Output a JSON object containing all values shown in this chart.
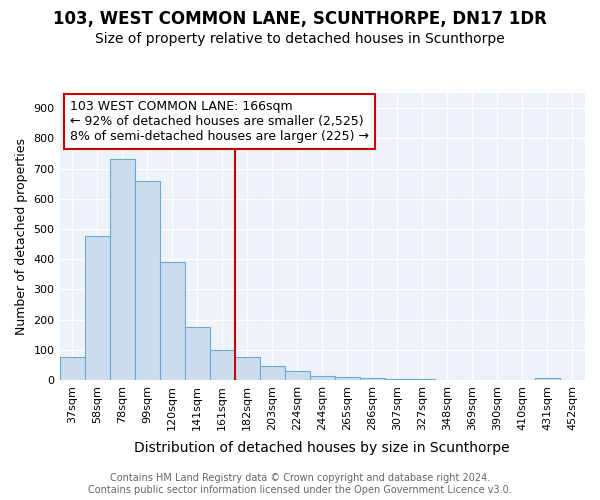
{
  "title": "103, WEST COMMON LANE, SCUNTHORPE, DN17 1DR",
  "subtitle": "Size of property relative to detached houses in Scunthorpe",
  "xlabel": "Distribution of detached houses by size in Scunthorpe",
  "ylabel": "Number of detached properties",
  "bar_labels": [
    "37sqm",
    "58sqm",
    "78sqm",
    "99sqm",
    "120sqm",
    "141sqm",
    "161sqm",
    "182sqm",
    "203sqm",
    "224sqm",
    "244sqm",
    "265sqm",
    "286sqm",
    "307sqm",
    "327sqm",
    "348sqm",
    "369sqm",
    "390sqm",
    "410sqm",
    "431sqm",
    "452sqm"
  ],
  "bar_values": [
    75,
    475,
    730,
    660,
    390,
    175,
    100,
    75,
    45,
    30,
    12,
    9,
    5,
    4,
    3,
    0,
    0,
    0,
    0,
    7,
    0
  ],
  "bar_color": "#ccddf0",
  "bar_edgecolor": "#6aaad4",
  "annotation_label": "103 WEST COMMON LANE: 166sqm",
  "annotation_line1": "← 92% of detached houses are smaller (2,525)",
  "annotation_line2": "8% of semi-detached houses are larger (225) →",
  "vline_color": "#cc0000",
  "vline_position": 6.5,
  "ylim": [
    0,
    950
  ],
  "yticks": [
    0,
    100,
    200,
    300,
    400,
    500,
    600,
    700,
    800,
    900
  ],
  "footer1": "Contains HM Land Registry data © Crown copyright and database right 2024.",
  "footer2": "Contains public sector information licensed under the Open Government Licence v3.0.",
  "plot_bg": "#eef3fa",
  "title_fontsize": 12,
  "subtitle_fontsize": 10,
  "ylabel_fontsize": 9,
  "xlabel_fontsize": 10,
  "tick_fontsize": 8,
  "annot_fontsize": 9,
  "footer_fontsize": 7
}
